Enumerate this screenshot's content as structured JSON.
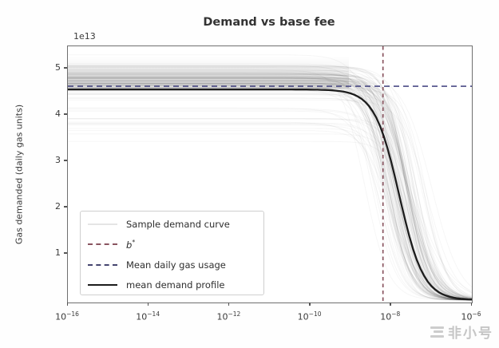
{
  "watermark": {
    "text": "非小号",
    "icon": "feixiaohao-logo-icon",
    "color": "#c6c6c6"
  },
  "chart_data": {
    "type": "line",
    "title": "Demand vs base fee",
    "xlabel": "",
    "ylabel": "Gas demanded (daily gas units)",
    "y_offset_label": "1e13",
    "x_axis_scale": "log",
    "x_ticks": [
      "10^-16",
      "10^-14",
      "10^-12",
      "10^-10",
      "10^-8",
      "10^-6"
    ],
    "x_tick_exponents": [
      -16,
      -14,
      -12,
      -10,
      -8,
      -6
    ],
    "xlim_exponents": [
      -16,
      -6
    ],
    "y_ticks": [
      1,
      2,
      3,
      4,
      5
    ],
    "ylim_e13": [
      -0.05,
      5.48
    ],
    "grid": false,
    "legend_position": "lower-left",
    "mean_daily_gas_usage_e13": 4.62,
    "b_star_exponent": -8.2,
    "mean_profile": {
      "level_e13": 4.55,
      "center_exponent": -7.8,
      "steepness": 3.3
    },
    "mean_profile_points_e13": [
      [
        -16,
        4.55
      ],
      [
        -12,
        4.55
      ],
      [
        -10,
        4.55
      ],
      [
        -9.0,
        4.42
      ],
      [
        -8.5,
        4.05
      ],
      [
        -8.2,
        3.6
      ],
      [
        -7.8,
        2.27
      ],
      [
        -7.4,
        1.0
      ],
      [
        -7.0,
        0.35
      ],
      [
        -6.5,
        0.06
      ],
      [
        -6,
        0.01
      ]
    ],
    "samples": {
      "seed": 11,
      "sigmoid_count": 70,
      "band_count": 45,
      "alpha": 0.035,
      "band_alpha": 0.05,
      "level_e13": 4.55,
      "center_exponent": -7.8,
      "steepness": 3.3,
      "level_jitter": 0.3,
      "center_jitter": 0.3
    },
    "legend": [
      {
        "label": "Sample demand curve",
        "style": "sample",
        "name": "sample-demand-curve"
      },
      {
        "label": "b*",
        "style": "bstar",
        "name": "b-star"
      },
      {
        "label": "Mean daily gas usage",
        "style": "meandash",
        "name": "mean-daily-gas-usage"
      },
      {
        "label": "mean demand profile",
        "style": "solid",
        "name": "mean-demand-profile"
      }
    ],
    "colors": {
      "frame": "#6f6f6f",
      "text": "#3a3a3a",
      "profile": "#1c1c1c",
      "mean_daily_line": "#4b4b85",
      "b_star_line": "#8a5560",
      "sample": "#000000",
      "watermark": "#c6c6c6"
    }
  }
}
